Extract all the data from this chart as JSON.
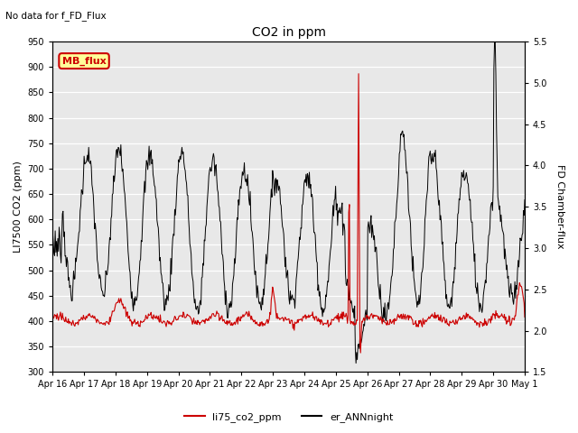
{
  "title": "CO2 in ppm",
  "top_note": "No data for f_FD_Flux",
  "ylabel_left": "LI7500 CO2 (ppm)",
  "ylabel_right": "FD Chamber-flux",
  "ylim_left": [
    300,
    950
  ],
  "ylim_right": [
    1.5,
    5.5
  ],
  "yticks_left": [
    300,
    350,
    400,
    450,
    500,
    550,
    600,
    650,
    700,
    750,
    800,
    850,
    900,
    950
  ],
  "yticks_right": [
    1.5,
    2.0,
    2.5,
    3.0,
    3.5,
    4.0,
    4.5,
    5.0,
    5.5
  ],
  "xtick_labels": [
    "Apr 16",
    "Apr 17",
    "Apr 18",
    "Apr 19",
    "Apr 20",
    "Apr 21",
    "Apr 22",
    "Apr 23",
    "Apr 24",
    "Apr 25",
    "Apr 26",
    "Apr 27",
    "Apr 28",
    "Apr 29",
    "Apr 30",
    "May 1"
  ],
  "line1_color": "#cc0000",
  "line2_color": "#000000",
  "legend1_label": "li75_co2_ppm",
  "legend2_label": "er_ANNnight",
  "mb_flux_box_color": "#ffff99",
  "mb_flux_text_color": "#cc0000",
  "mb_flux_border_color": "#cc0000",
  "plot_bg_color": "#e8e8e8",
  "figsize": [
    6.4,
    4.8
  ],
  "dpi": 100
}
